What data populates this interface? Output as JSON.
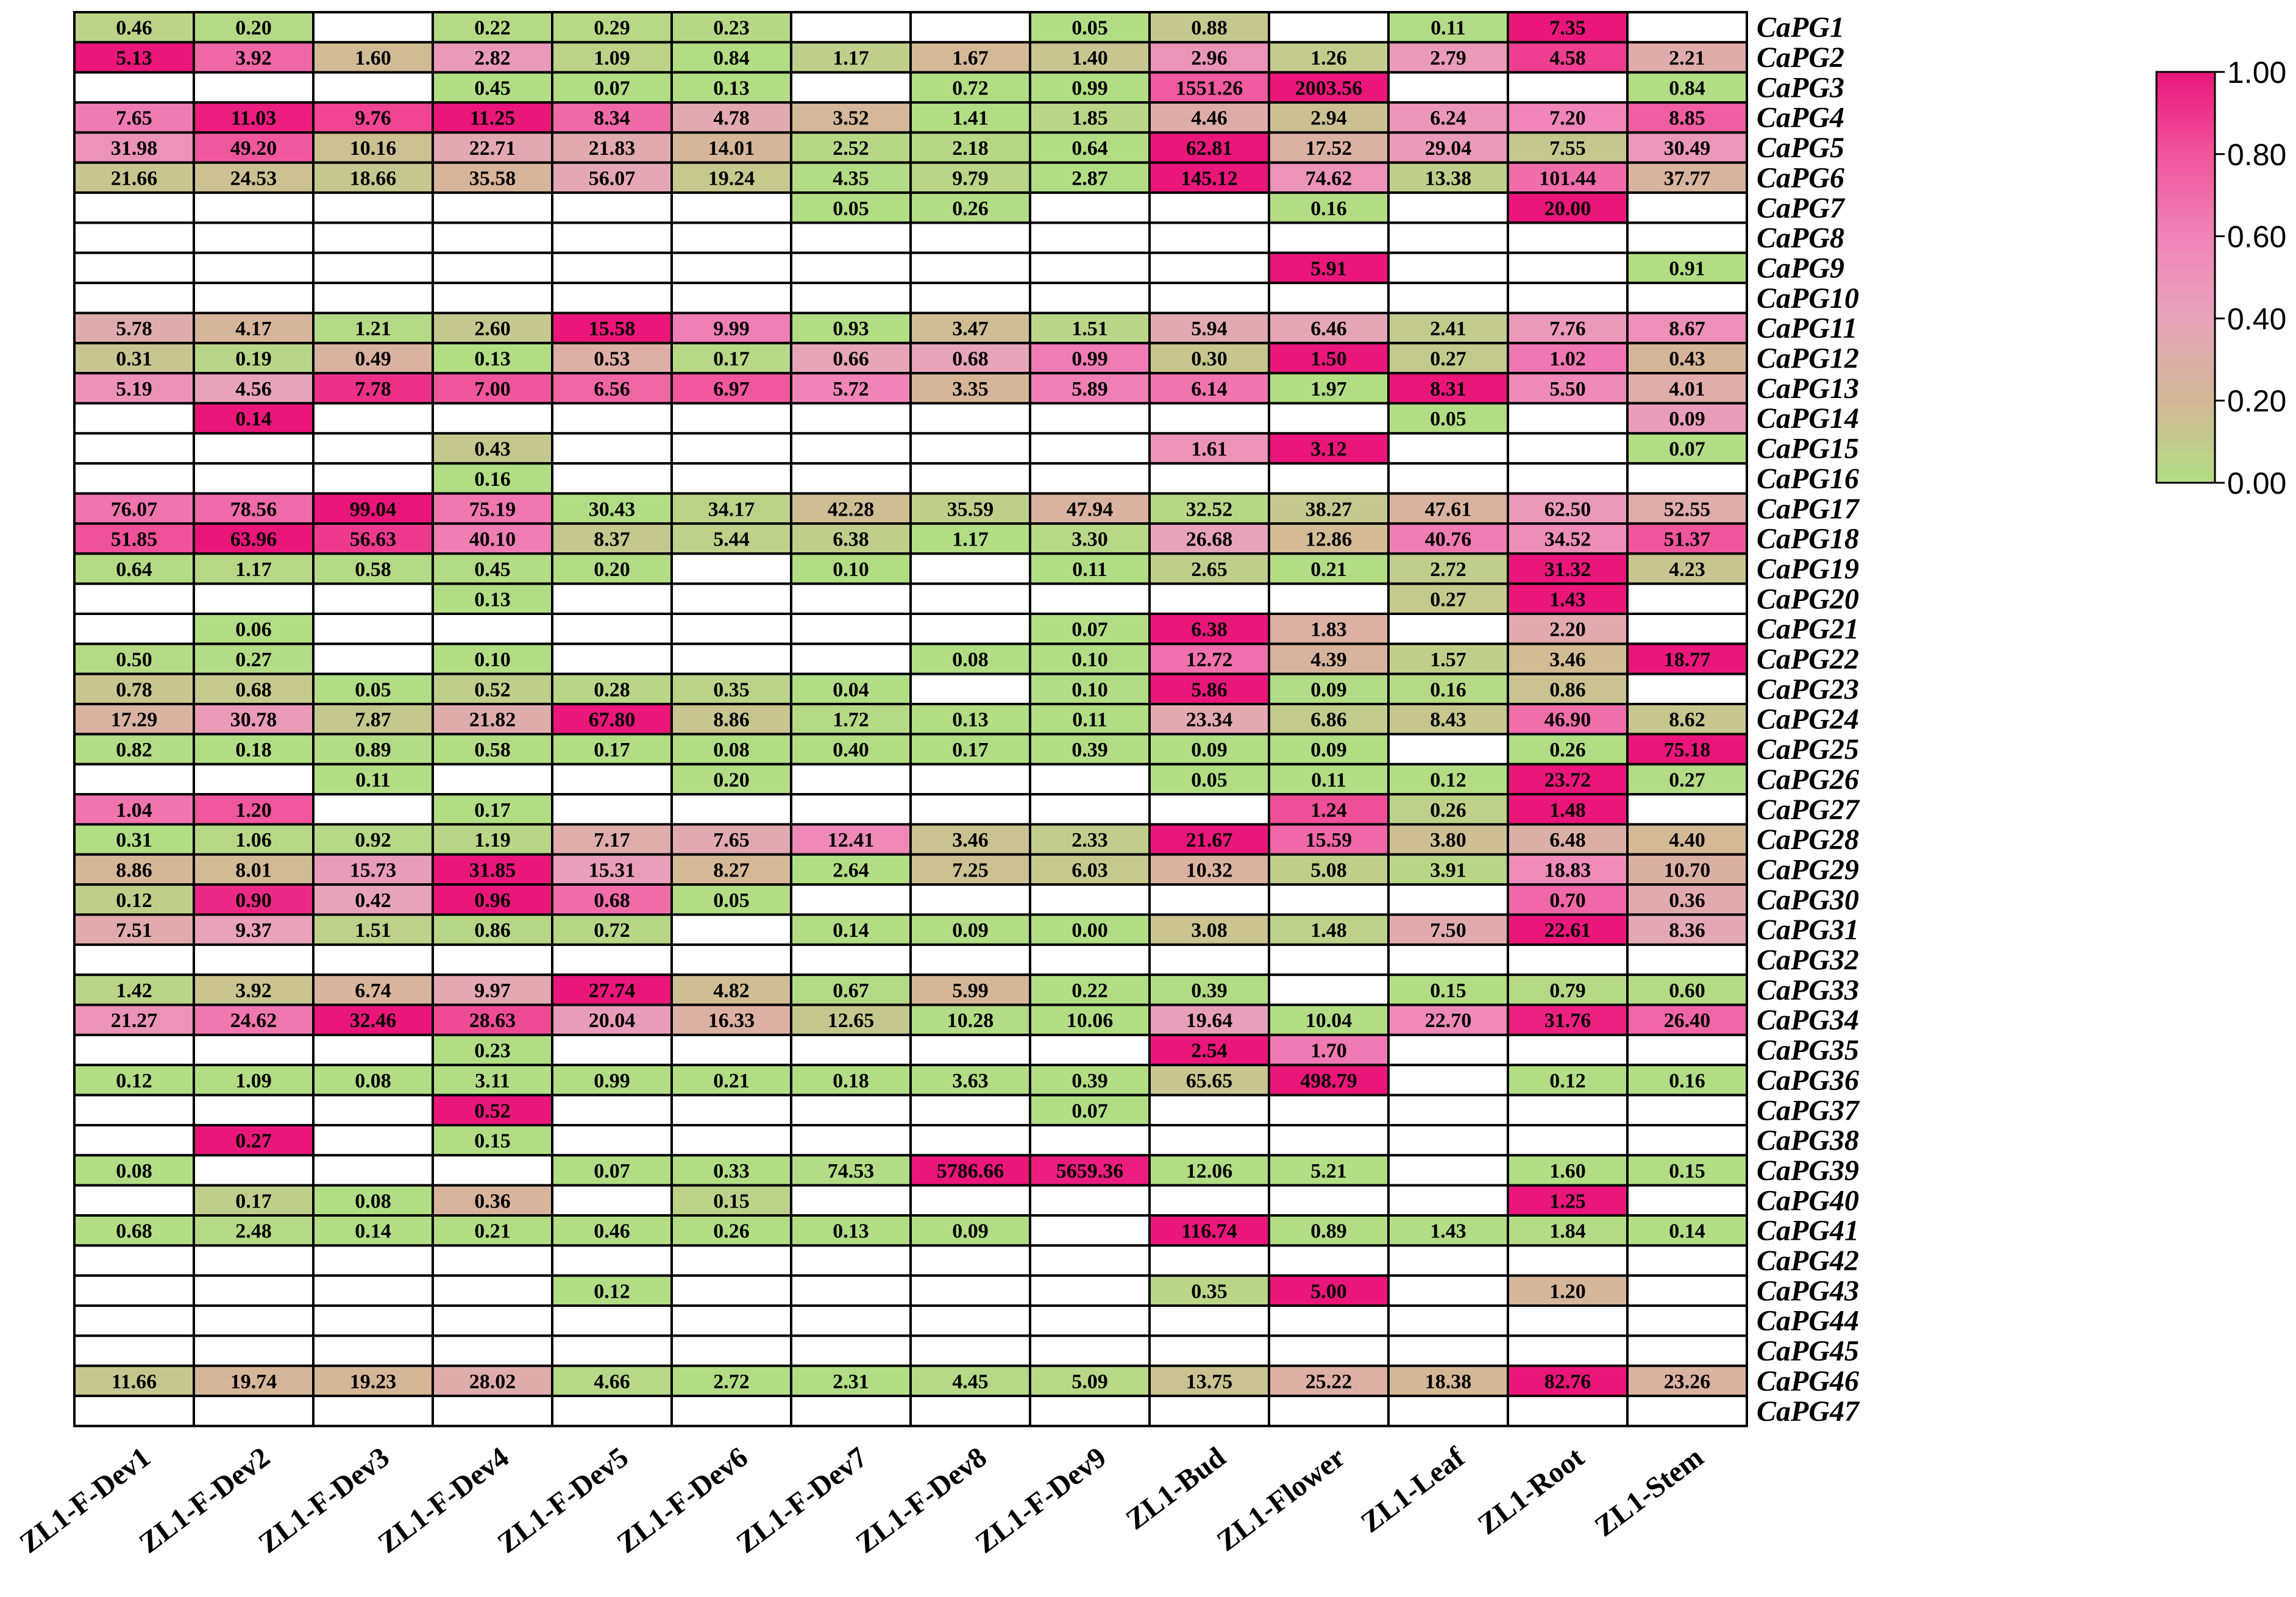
{
  "chart_data": {
    "type": "heatmap",
    "title": "",
    "columns": [
      "ZL1-F-Dev1",
      "ZL1-F-Dev2",
      "ZL1-F-Dev3",
      "ZL1-F-Dev4",
      "ZL1-F-Dev5",
      "ZL1-F-Dev6",
      "ZL1-F-Dev7",
      "ZL1-F-Dev8",
      "ZL1-F-Dev9",
      "ZL1-Bud",
      "ZL1-Flower",
      "ZL1-Leaf",
      "ZL1-Root",
      "ZL1-Stem"
    ],
    "rows": [
      "CaPG1",
      "CaPG2",
      "CaPG3",
      "CaPG4",
      "CaPG5",
      "CaPG6",
      "CaPG7",
      "CaPG8",
      "CaPG9",
      "CaPG10",
      "CaPG11",
      "CaPG12",
      "CaPG13",
      "CaPG14",
      "CaPG15",
      "CaPG16",
      "CaPG17",
      "CaPG18",
      "CaPG19",
      "CaPG20",
      "CaPG21",
      "CaPG22",
      "CaPG23",
      "CaPG24",
      "CaPG25",
      "CaPG26",
      "CaPG27",
      "CaPG28",
      "CaPG29",
      "CaPG30",
      "CaPG31",
      "CaPG32",
      "CaPG33",
      "CaPG34",
      "CaPG35",
      "CaPG36",
      "CaPG37",
      "CaPG38",
      "CaPG39",
      "CaPG40",
      "CaPG41",
      "CaPG42",
      "CaPG43",
      "CaPG44",
      "CaPG45",
      "CaPG46",
      "CaPG47"
    ],
    "values": [
      [
        "0.46",
        "0.20",
        null,
        "0.22",
        "0.29",
        "0.23",
        null,
        null,
        "0.05",
        "0.88",
        null,
        "0.11",
        "7.35",
        null
      ],
      [
        "5.13",
        "3.92",
        "1.60",
        "2.82",
        "1.09",
        "0.84",
        "1.17",
        "1.67",
        "1.40",
        "2.96",
        "1.26",
        "2.79",
        "4.58",
        "2.21"
      ],
      [
        null,
        null,
        null,
        "0.45",
        "0.07",
        "0.13",
        null,
        "0.72",
        "0.99",
        "1551.26",
        "2003.56",
        null,
        null,
        "0.84"
      ],
      [
        "7.65",
        "11.03",
        "9.76",
        "11.25",
        "8.34",
        "4.78",
        "3.52",
        "1.41",
        "1.85",
        "4.46",
        "2.94",
        "6.24",
        "7.20",
        "8.85"
      ],
      [
        "31.98",
        "49.20",
        "10.16",
        "22.71",
        "21.83",
        "14.01",
        "2.52",
        "2.18",
        "0.64",
        "62.81",
        "17.52",
        "29.04",
        "7.55",
        "30.49"
      ],
      [
        "21.66",
        "24.53",
        "18.66",
        "35.58",
        "56.07",
        "19.24",
        "4.35",
        "9.79",
        "2.87",
        "145.12",
        "74.62",
        "13.38",
        "101.44",
        "37.77"
      ],
      [
        null,
        null,
        null,
        null,
        null,
        null,
        "0.05",
        "0.26",
        null,
        null,
        "0.16",
        null,
        "20.00",
        null
      ],
      [
        null,
        null,
        null,
        null,
        null,
        null,
        null,
        null,
        null,
        null,
        null,
        null,
        null,
        null
      ],
      [
        null,
        null,
        null,
        null,
        null,
        null,
        null,
        null,
        null,
        null,
        "5.91",
        null,
        null,
        "0.91"
      ],
      [
        null,
        null,
        null,
        null,
        null,
        null,
        null,
        null,
        null,
        null,
        null,
        null,
        null,
        null
      ],
      [
        "5.78",
        "4.17",
        "1.21",
        "2.60",
        "15.58",
        "9.99",
        "0.93",
        "3.47",
        "1.51",
        "5.94",
        "6.46",
        "2.41",
        "7.76",
        "8.67"
      ],
      [
        "0.31",
        "0.19",
        "0.49",
        "0.13",
        "0.53",
        "0.17",
        "0.66",
        "0.68",
        "0.99",
        "0.30",
        "1.50",
        "0.27",
        "1.02",
        "0.43"
      ],
      [
        "5.19",
        "4.56",
        "7.78",
        "7.00",
        "6.56",
        "6.97",
        "5.72",
        "3.35",
        "5.89",
        "6.14",
        "1.97",
        "8.31",
        "5.50",
        "4.01"
      ],
      [
        null,
        "0.14",
        null,
        null,
        null,
        null,
        null,
        null,
        null,
        null,
        null,
        "0.05",
        null,
        "0.09"
      ],
      [
        null,
        null,
        null,
        "0.43",
        null,
        null,
        null,
        null,
        null,
        "1.61",
        "3.12",
        null,
        null,
        "0.07"
      ],
      [
        null,
        null,
        null,
        "0.16",
        null,
        null,
        null,
        null,
        null,
        null,
        null,
        null,
        null,
        null
      ],
      [
        "76.07",
        "78.56",
        "99.04",
        "75.19",
        "30.43",
        "34.17",
        "42.28",
        "35.59",
        "47.94",
        "32.52",
        "38.27",
        "47.61",
        "62.50",
        "52.55"
      ],
      [
        "51.85",
        "63.96",
        "56.63",
        "40.10",
        "8.37",
        "5.44",
        "6.38",
        "1.17",
        "3.30",
        "26.68",
        "12.86",
        "40.76",
        "34.52",
        "51.37"
      ],
      [
        "0.64",
        "1.17",
        "0.58",
        "0.45",
        "0.20",
        null,
        "0.10",
        null,
        "0.11",
        "2.65",
        "0.21",
        "2.72",
        "31.32",
        "4.23"
      ],
      [
        null,
        null,
        null,
        "0.13",
        null,
        null,
        null,
        null,
        null,
        null,
        null,
        "0.27",
        "1.43",
        null
      ],
      [
        null,
        "0.06",
        null,
        null,
        null,
        null,
        null,
        null,
        "0.07",
        "6.38",
        "1.83",
        null,
        "2.20",
        null
      ],
      [
        "0.50",
        "0.27",
        null,
        "0.10",
        null,
        null,
        null,
        "0.08",
        "0.10",
        "12.72",
        "4.39",
        "1.57",
        "3.46",
        "18.77"
      ],
      [
        "0.78",
        "0.68",
        "0.05",
        "0.52",
        "0.28",
        "0.35",
        "0.04",
        null,
        "0.10",
        "5.86",
        "0.09",
        "0.16",
        "0.86",
        null
      ],
      [
        "17.29",
        "30.78",
        "7.87",
        "21.82",
        "67.80",
        "8.86",
        "1.72",
        "0.13",
        "0.11",
        "23.34",
        "6.86",
        "8.43",
        "46.90",
        "8.62"
      ],
      [
        "0.82",
        "0.18",
        "0.89",
        "0.58",
        "0.17",
        "0.08",
        "0.40",
        "0.17",
        "0.39",
        "0.09",
        "0.09",
        null,
        "0.26",
        "75.18"
      ],
      [
        null,
        null,
        "0.11",
        null,
        null,
        "0.20",
        null,
        null,
        null,
        "0.05",
        "0.11",
        "0.12",
        "23.72",
        "0.27"
      ],
      [
        "1.04",
        "1.20",
        null,
        "0.17",
        null,
        null,
        null,
        null,
        null,
        null,
        "1.24",
        "0.26",
        "1.48",
        null
      ],
      [
        "0.31",
        "1.06",
        "0.92",
        "1.19",
        "7.17",
        "7.65",
        "12.41",
        "3.46",
        "2.33",
        "21.67",
        "15.59",
        "3.80",
        "6.48",
        "4.40"
      ],
      [
        "8.86",
        "8.01",
        "15.73",
        "31.85",
        "15.31",
        "8.27",
        "2.64",
        "7.25",
        "6.03",
        "10.32",
        "5.08",
        "3.91",
        "18.83",
        "10.70"
      ],
      [
        "0.12",
        "0.90",
        "0.42",
        "0.96",
        "0.68",
        "0.05",
        null,
        null,
        null,
        null,
        null,
        null,
        "0.70",
        "0.36"
      ],
      [
        "7.51",
        "9.37",
        "1.51",
        "0.86",
        "0.72",
        null,
        "0.14",
        "0.09",
        "0.00",
        "3.08",
        "1.48",
        "7.50",
        "22.61",
        "8.36"
      ],
      [
        null,
        null,
        null,
        null,
        null,
        null,
        null,
        null,
        null,
        null,
        null,
        null,
        null,
        null
      ],
      [
        "1.42",
        "3.92",
        "6.74",
        "9.97",
        "27.74",
        "4.82",
        "0.67",
        "5.99",
        "0.22",
        "0.39",
        null,
        "0.15",
        "0.79",
        "0.60"
      ],
      [
        "21.27",
        "24.62",
        "32.46",
        "28.63",
        "20.04",
        "16.33",
        "12.65",
        "10.28",
        "10.06",
        "19.64",
        "10.04",
        "22.70",
        "31.76",
        "26.40"
      ],
      [
        null,
        null,
        null,
        "0.23",
        null,
        null,
        null,
        null,
        null,
        "2.54",
        "1.70",
        null,
        null,
        null
      ],
      [
        "0.12",
        "1.09",
        "0.08",
        "3.11",
        "0.99",
        "0.21",
        "0.18",
        "3.63",
        "0.39",
        "65.65",
        "498.79",
        null,
        "0.12",
        "0.16"
      ],
      [
        null,
        null,
        null,
        "0.52",
        null,
        null,
        null,
        null,
        "0.07",
        null,
        null,
        null,
        null,
        null
      ],
      [
        null,
        "0.27",
        null,
        "0.15",
        null,
        null,
        null,
        null,
        null,
        null,
        null,
        null,
        null,
        null
      ],
      [
        "0.08",
        null,
        null,
        null,
        "0.07",
        "0.33",
        "74.53",
        "5786.66",
        "5659.36",
        "12.06",
        "5.21",
        null,
        "1.60",
        "0.15"
      ],
      [
        null,
        "0.17",
        "0.08",
        "0.36",
        null,
        "0.15",
        null,
        null,
        null,
        null,
        null,
        null,
        "1.25",
        null
      ],
      [
        "0.68",
        "2.48",
        "0.14",
        "0.21",
        "0.46",
        "0.26",
        "0.13",
        "0.09",
        null,
        "116.74",
        "0.89",
        "1.43",
        "1.84",
        "0.14"
      ],
      [
        null,
        null,
        null,
        null,
        null,
        null,
        null,
        null,
        null,
        null,
        null,
        null,
        null,
        null
      ],
      [
        null,
        null,
        null,
        null,
        "0.12",
        null,
        null,
        null,
        null,
        "0.35",
        "5.00",
        null,
        "1.20",
        null
      ],
      [
        null,
        null,
        null,
        null,
        null,
        null,
        null,
        null,
        null,
        null,
        null,
        null,
        null,
        null
      ],
      [
        null,
        null,
        null,
        null,
        null,
        null,
        null,
        null,
        null,
        null,
        null,
        null,
        null,
        null
      ],
      [
        "11.66",
        "19.74",
        "19.23",
        "28.02",
        "4.66",
        "2.72",
        "2.31",
        "4.45",
        "5.09",
        "13.75",
        "25.22",
        "18.38",
        "82.76",
        "23.26"
      ],
      [
        null,
        null,
        null,
        null,
        null,
        null,
        null,
        null,
        null,
        null,
        null,
        null,
        null,
        null
      ]
    ],
    "normalization": "row-wise min-max",
    "colorscale": {
      "stops": [
        {
          "value": 0.0,
          "color": "#b2dd84"
        },
        {
          "value": 0.2,
          "color": "#d4b896"
        },
        {
          "value": 0.4,
          "color": "#e7a4ba"
        },
        {
          "value": 0.6,
          "color": "#f083b8"
        },
        {
          "value": 0.8,
          "color": "#f0549a"
        },
        {
          "value": 1.0,
          "color": "#ea167a"
        }
      ],
      "ticks": [
        "0.00",
        "0.20",
        "0.40",
        "0.60",
        "0.80",
        "1.00"
      ],
      "range": [
        0,
        1
      ]
    },
    "legend_position": "top-right",
    "empty_cell_color": "#ffffff",
    "border_color": "#000000"
  }
}
